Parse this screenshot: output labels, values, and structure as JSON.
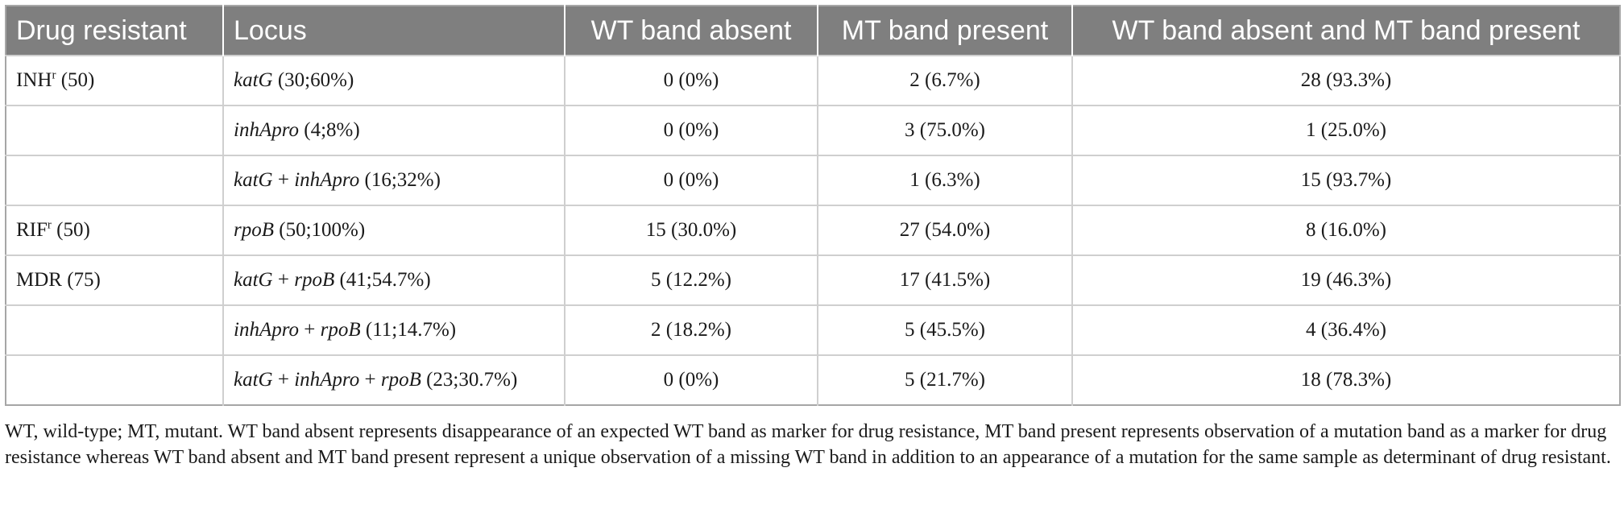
{
  "header": {
    "col1": "Drug resistant",
    "col2": "Locus",
    "col3": "WT band absent",
    "col4": "MT band present",
    "col5": "WT band absent and MT band present"
  },
  "rows": [
    {
      "drug": "INH",
      "drug_sup": "r",
      "drug_count": " (50)",
      "locus_italic": "katG",
      "locus_rest": " (30;60%)",
      "wt_absent": "0 (0%)",
      "mt_present": "2 (6.7%)",
      "both": "28 (93.3%)"
    },
    {
      "locus_italic": "inhApro",
      "locus_rest": " (4;8%)",
      "wt_absent": "0 (0%)",
      "mt_present": "3 (75.0%)",
      "both": "1 (25.0%)"
    },
    {
      "locus_italic": "katG",
      "locus_mid": " + ",
      "locus_italic2": "inhApro",
      "locus_rest": " (16;32%)",
      "wt_absent": "0 (0%)",
      "mt_present": "1 (6.3%)",
      "both": "15 (93.7%)"
    },
    {
      "drug": "RIF",
      "drug_sup": "r",
      "drug_count": " (50)",
      "locus_italic": "rpoB",
      "locus_rest": " (50;100%)",
      "wt_absent": "15 (30.0%)",
      "mt_present": "27 (54.0%)",
      "both": "8 (16.0%)"
    },
    {
      "drug": "MDR (75)",
      "locus_italic": "katG",
      "locus_mid": " + ",
      "locus_italic2": "rpoB",
      "locus_rest": " (41;54.7%)",
      "wt_absent": "5 (12.2%)",
      "mt_present": "17 (41.5%)",
      "both": "19 (46.3%)"
    },
    {
      "locus_italic": "inhApro",
      "locus_mid": " + ",
      "locus_italic2": "rpoB",
      "locus_rest": " (11;14.7%)",
      "wt_absent": "2 (18.2%)",
      "mt_present": "5 (45.5%)",
      "both": "4 (36.4%)"
    },
    {
      "locus_italic": "katG",
      "locus_mid": " + ",
      "locus_italic2": "inhApro",
      "locus_mid2": " + ",
      "locus_italic3": "rpoB",
      "locus_rest": " (23;30.7%)",
      "wt_absent": "0 (0%)",
      "mt_present": "5 (21.7%)",
      "both": "18 (78.3%)"
    }
  ],
  "footnote": "WT, wild-type; MT, mutant. WT band absent represents disappearance of an expected WT band as marker for drug resistance, MT band present represents observation of a mutation band as a marker for drug resistance whereas WT band absent and MT band present represent a unique observation of a missing WT band in addition to an appearance of a mutation for the same sample as determinant of drug resistant.",
  "colors": {
    "header_bg": "#7f7f7f",
    "header_text": "#ffffff",
    "border": "#cfcfcf"
  }
}
